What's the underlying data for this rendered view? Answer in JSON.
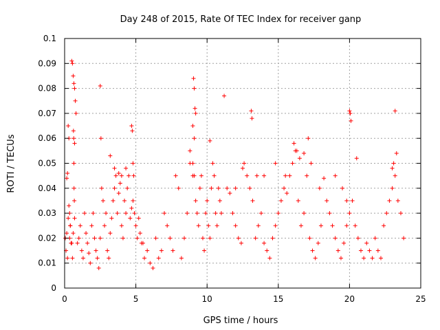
{
  "chart_data": {
    "type": "scatter",
    "title": "Day 248 of 2015, Rate Of TEC Index for receiver ganp",
    "xlabel": "GPS time / hours",
    "ylabel": "ROTI / TECUs",
    "xlim": [
      0,
      25
    ],
    "ylim": [
      0,
      0.1
    ],
    "x_ticks": [
      "0",
      "5",
      "10",
      "15",
      "20",
      "25"
    ],
    "x_tick_values": [
      0,
      5,
      10,
      15,
      20,
      25
    ],
    "y_ticks": [
      "0",
      "0.01",
      "0.02",
      "0.03",
      "0.04",
      "0.05",
      "0.06",
      "0.07",
      "0.08",
      "0.09",
      "0.1"
    ],
    "y_tick_values": [
      0,
      0.01,
      0.02,
      0.03,
      0.04,
      0.05,
      0.06,
      0.07,
      0.08,
      0.09,
      0.1
    ],
    "grid": true,
    "marker": "+",
    "series": [
      {
        "color": "#ff0000",
        "x": [
          0.05,
          0.1,
          0.15,
          0.2,
          0.25,
          0.3,
          0.35,
          0.4,
          0.5,
          0.55,
          0.6,
          0.65,
          0.7,
          0.75,
          0.8,
          0.5,
          0.55,
          0.6,
          0.65,
          0.7,
          0.62,
          0.64,
          0.66,
          0.68,
          0.7,
          0.3,
          0.35,
          0.4,
          0.45,
          0.2,
          0.25,
          0.15,
          0.9,
          1.0,
          1.1,
          1.2,
          1.3,
          1.4,
          1.5,
          1.6,
          1.7,
          1.8,
          1.9,
          2.0,
          2.1,
          2.2,
          2.3,
          2.4,
          2.5,
          2.6,
          2.7,
          2.8,
          2.9,
          3.0,
          3.1,
          3.2,
          3.3,
          3.4,
          3.5,
          3.6,
          3.7,
          3.8,
          3.9,
          4.0,
          4.1,
          4.2,
          4.3,
          4.4,
          4.5,
          4.6,
          4.7,
          4.8,
          4.9,
          5.0,
          5.1,
          5.2,
          5.3,
          5.4,
          2.5,
          2.55,
          3.2,
          3.5,
          3.8,
          4.0,
          4.3,
          4.7,
          4.75,
          4.8,
          4.85,
          5.5,
          5.6,
          5.8,
          6.0,
          6.2,
          6.4,
          6.6,
          6.8,
          7.0,
          7.2,
          7.4,
          7.6,
          7.8,
          8.0,
          8.2,
          8.4,
          8.6,
          8.8,
          9.0,
          9.1,
          9.2,
          9.3,
          9.4,
          9.5,
          9.6,
          9.7,
          9.8,
          9.9,
          10.0,
          10.1,
          10.2,
          10.3,
          10.4,
          10.5,
          10.6,
          10.7,
          10.8,
          10.9,
          11.0,
          9.0,
          9.05,
          9.1,
          9.15,
          9.2,
          9.0,
          9.1,
          8.8,
          10.2,
          11.2,
          11.4,
          11.6,
          11.8,
          12.0,
          12.2,
          12.4,
          12.6,
          12.8,
          13.0,
          13.2,
          13.4,
          13.6,
          13.8,
          14.0,
          14.2,
          14.4,
          14.6,
          14.8,
          15.0,
          15.2,
          15.4,
          15.6,
          15.8,
          16.0,
          16.2,
          16.4,
          16.6,
          16.8,
          17.0,
          17.2,
          17.4,
          17.6,
          17.8,
          18.0,
          13.1,
          13.15,
          12.0,
          12.5,
          13.5,
          14.0,
          14.8,
          15.5,
          16.1,
          16.3,
          16.5,
          16.8,
          17.1,
          17.3,
          17.9,
          18.2,
          18.4,
          18.6,
          18.8,
          19.0,
          19.2,
          19.4,
          19.6,
          19.8,
          20.0,
          20.2,
          20.4,
          20.6,
          20.8,
          21.0,
          21.2,
          21.4,
          21.6,
          21.8,
          22.0,
          22.2,
          22.4,
          22.6,
          22.8,
          23.0,
          23.2,
          23.4,
          23.6,
          23.8,
          20.0,
          20.05,
          20.1,
          20.5,
          23.2,
          23.0,
          23.1,
          23.3,
          19.0,
          19.5,
          19.8
        ],
        "y": [
          0.02,
          0.015,
          0.044,
          0.046,
          0.065,
          0.06,
          0.03,
          0.025,
          0.091,
          0.09,
          0.085,
          0.082,
          0.08,
          0.075,
          0.07,
          0.018,
          0.012,
          0.022,
          0.05,
          0.058,
          0.063,
          0.06,
          0.04,
          0.035,
          0.028,
          0.033,
          0.02,
          0.025,
          0.018,
          0.012,
          0.028,
          0.022,
          0.018,
          0.02,
          0.025,
          0.015,
          0.012,
          0.03,
          0.022,
          0.018,
          0.014,
          0.01,
          0.025,
          0.03,
          0.02,
          0.015,
          0.012,
          0.008,
          0.02,
          0.04,
          0.035,
          0.025,
          0.03,
          0.015,
          0.012,
          0.022,
          0.028,
          0.035,
          0.04,
          0.045,
          0.03,
          0.038,
          0.042,
          0.025,
          0.02,
          0.035,
          0.03,
          0.04,
          0.045,
          0.028,
          0.032,
          0.035,
          0.03,
          0.025,
          0.02,
          0.028,
          0.022,
          0.018,
          0.081,
          0.06,
          0.053,
          0.048,
          0.046,
          0.045,
          0.048,
          0.065,
          0.063,
          0.05,
          0.045,
          0.018,
          0.012,
          0.015,
          0.01,
          0.008,
          0.02,
          0.012,
          0.015,
          0.03,
          0.025,
          0.02,
          0.015,
          0.045,
          0.04,
          0.012,
          0.02,
          0.03,
          0.055,
          0.05,
          0.045,
          0.035,
          0.03,
          0.025,
          0.04,
          0.045,
          0.02,
          0.015,
          0.03,
          0.035,
          0.025,
          0.02,
          0.04,
          0.05,
          0.045,
          0.03,
          0.025,
          0.04,
          0.035,
          0.03,
          0.045,
          0.084,
          0.08,
          0.072,
          0.07,
          0.065,
          0.06,
          0.05,
          0.059,
          0.077,
          0.04,
          0.038,
          0.03,
          0.025,
          0.02,
          0.018,
          0.05,
          0.045,
          0.04,
          0.035,
          0.02,
          0.025,
          0.03,
          0.018,
          0.015,
          0.012,
          0.02,
          0.025,
          0.03,
          0.035,
          0.04,
          0.038,
          0.045,
          0.05,
          0.055,
          0.035,
          0.025,
          0.03,
          0.045,
          0.02,
          0.015,
          0.012,
          0.018,
          0.025,
          0.071,
          0.068,
          0.04,
          0.048,
          0.045,
          0.045,
          0.05,
          0.045,
          0.058,
          0.055,
          0.052,
          0.054,
          0.06,
          0.05,
          0.04,
          0.044,
          0.035,
          0.03,
          0.025,
          0.02,
          0.015,
          0.012,
          0.018,
          0.025,
          0.03,
          0.035,
          0.025,
          0.02,
          0.015,
          0.012,
          0.018,
          0.015,
          0.012,
          0.02,
          0.015,
          0.012,
          0.025,
          0.03,
          0.035,
          0.04,
          0.045,
          0.035,
          0.03,
          0.02,
          0.071,
          0.07,
          0.067,
          0.052,
          0.071,
          0.048,
          0.05,
          0.054,
          0.045,
          0.04,
          0.035
        ]
      }
    ]
  }
}
